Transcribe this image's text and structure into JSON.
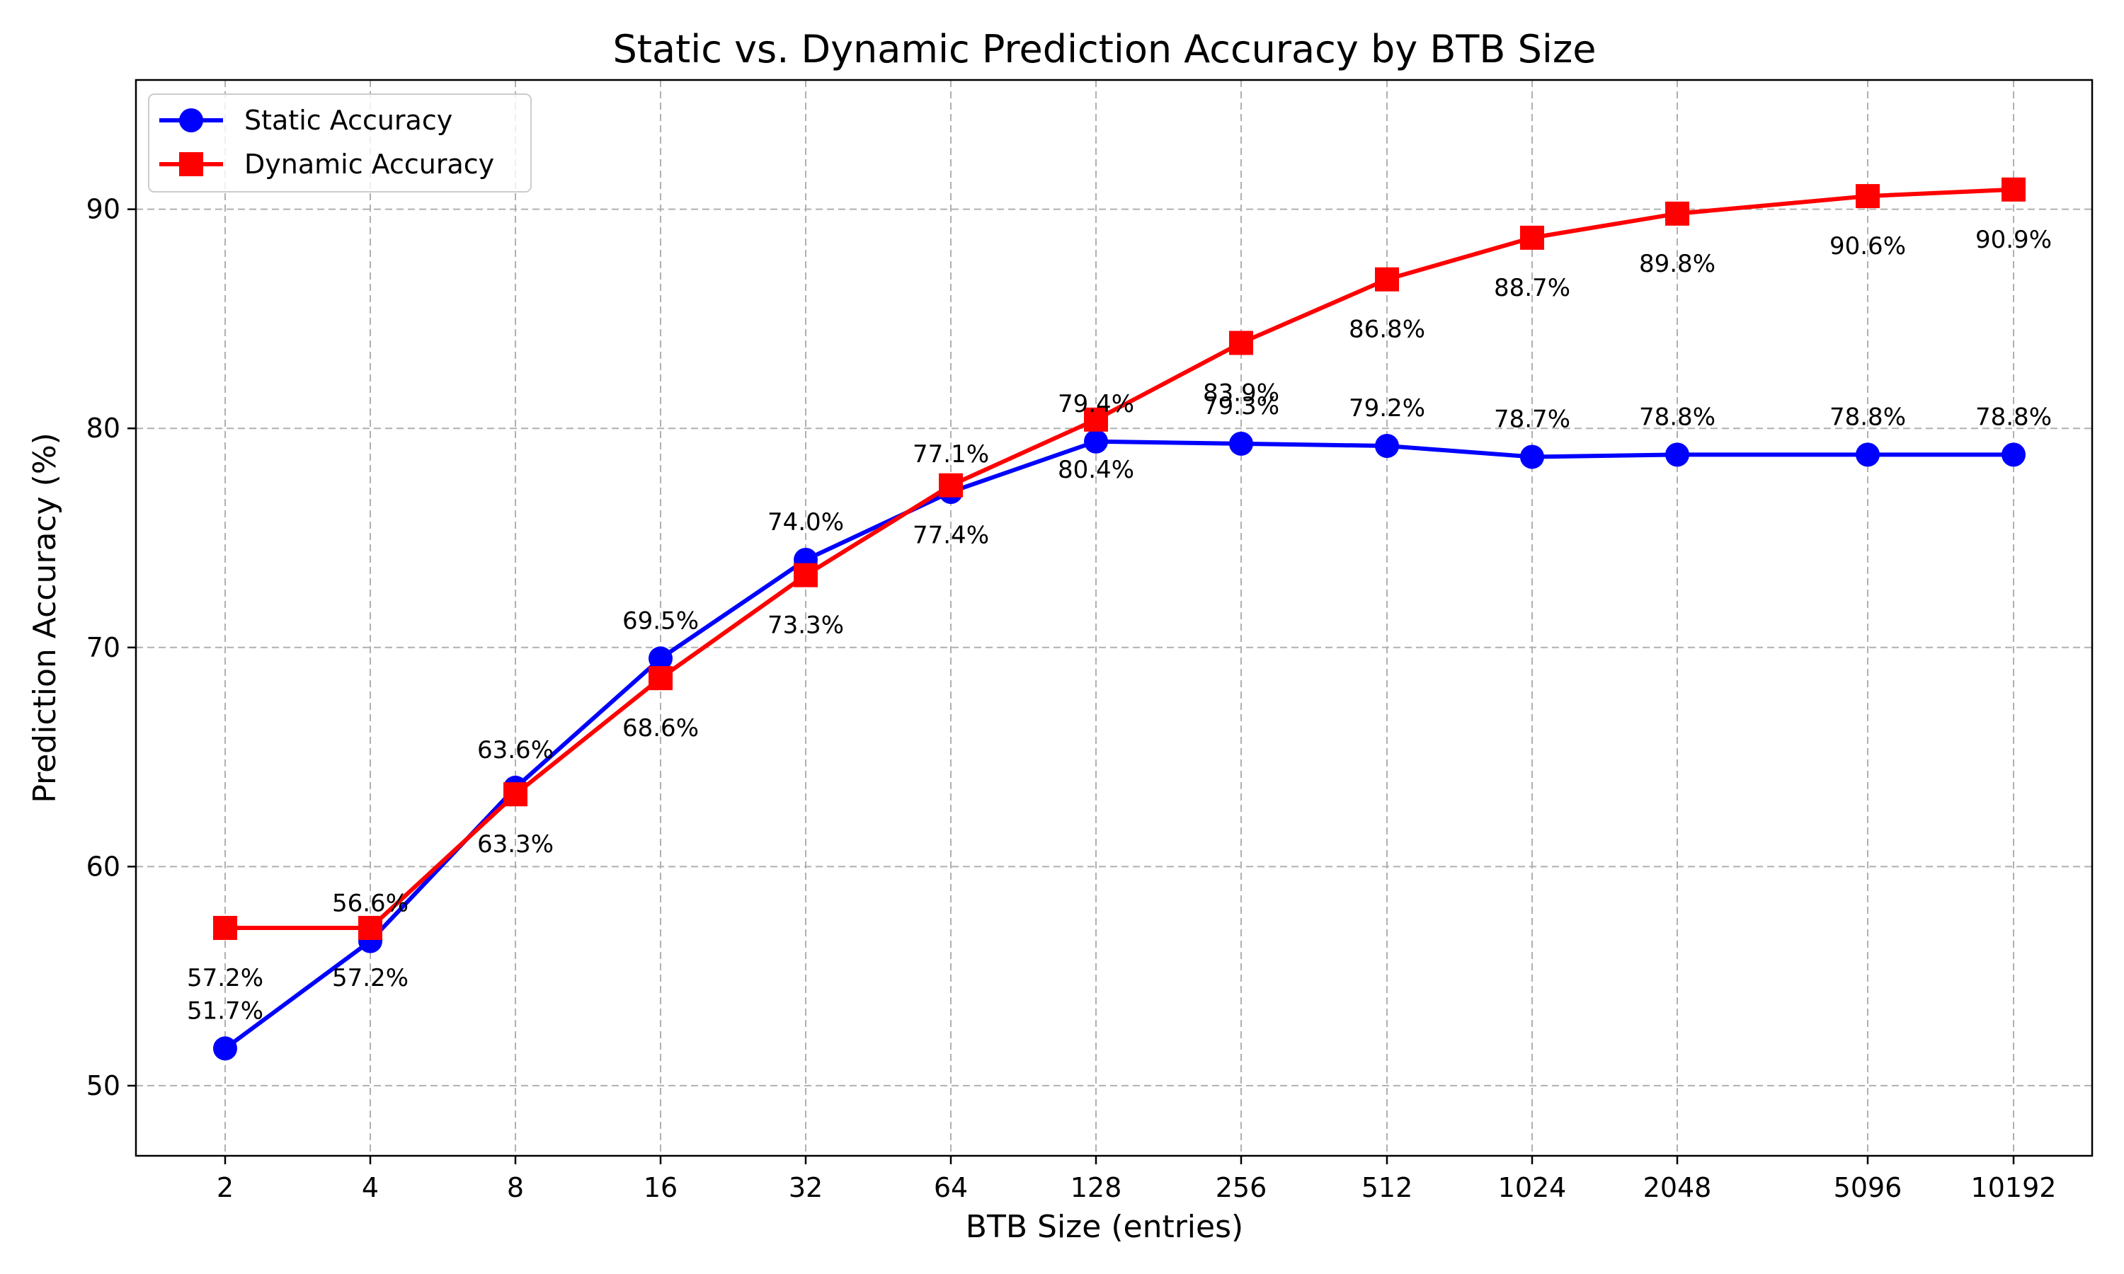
{
  "chart_data": {
    "type": "line",
    "title": "Static vs. Dynamic Prediction Accuracy by BTB Size",
    "xlabel": "BTB Size (entries)",
    "ylabel": "Prediction Accuracy (%)",
    "x_scale": "log2",
    "x": [
      2,
      4,
      8,
      16,
      32,
      64,
      128,
      256,
      512,
      1024,
      2048,
      5096,
      10192
    ],
    "x_tick_labels": [
      "2",
      "4",
      "8",
      "16",
      "32",
      "64",
      "128",
      "256",
      "512",
      "1024",
      "2048",
      "5096",
      "10192"
    ],
    "ylim": [
      46.8,
      95.9
    ],
    "y_ticks": [
      50,
      60,
      70,
      80,
      90
    ],
    "grid": true,
    "legend_position": "top-left",
    "series": [
      {
        "name": "Static Accuracy",
        "color": "#0000ff",
        "marker": "circle",
        "values": [
          51.7,
          56.6,
          63.6,
          69.5,
          74.0,
          77.1,
          79.4,
          79.3,
          79.2,
          78.7,
          78.8,
          78.8,
          78.8
        ],
        "labels": [
          "51.7%",
          "56.6%",
          "63.6%",
          "69.5%",
          "74.0%",
          "77.1%",
          "79.4%",
          "79.3%",
          "79.2%",
          "78.7%",
          "78.8%",
          "78.8%",
          "78.8%"
        ],
        "label_position": "above"
      },
      {
        "name": "Dynamic Accuracy",
        "color": "#ff0000",
        "marker": "square",
        "values": [
          57.2,
          57.2,
          63.3,
          68.6,
          73.3,
          77.4,
          80.4,
          83.9,
          86.8,
          88.7,
          89.8,
          90.6,
          90.9
        ],
        "labels": [
          "57.2%",
          "57.2%",
          "63.3%",
          "68.6%",
          "73.3%",
          "77.4%",
          "80.4%",
          "83.9%",
          "86.8%",
          "88.7%",
          "89.8%",
          "90.6%",
          "90.9%"
        ],
        "label_position": "below"
      }
    ]
  }
}
